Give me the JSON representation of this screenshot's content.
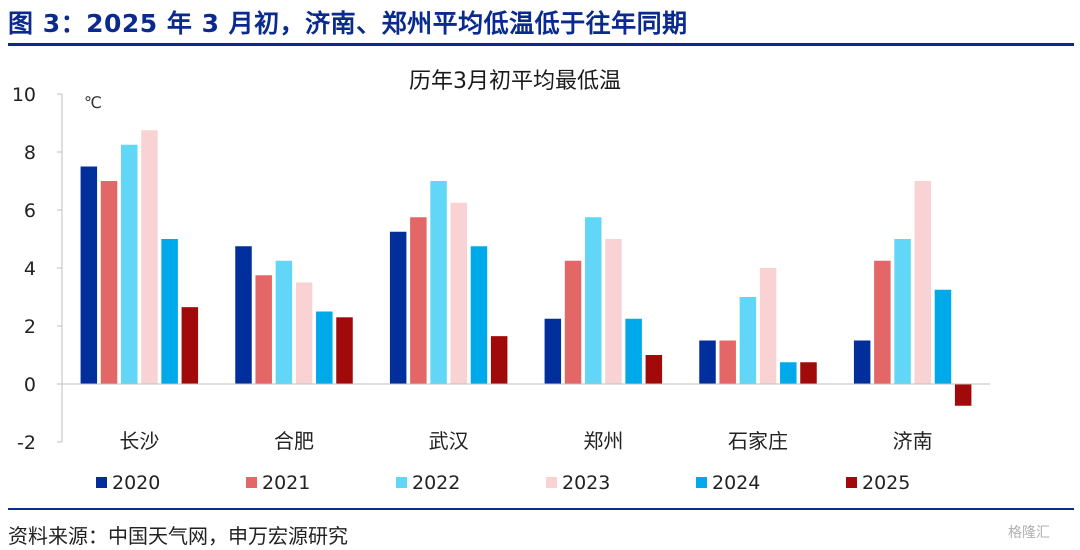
{
  "figure": {
    "title": "图 3：2025 年 3 月初，济南、郑州平均低温低于往年同期",
    "source": "资料来源：中国天气网，申万宏源研究",
    "watermark": "格隆汇"
  },
  "colors": {
    "accent": "#0a2a8e",
    "series": [
      "#002e9b",
      "#e46767",
      "#62d6f6",
      "#f9d3d3",
      "#00a9e9",
      "#a00a0a"
    ]
  },
  "chart_data": {
    "type": "bar",
    "title": "历年3月初平均最低温",
    "unit": "℃",
    "xlabel": "",
    "ylabel": "",
    "ylim": [
      -2,
      10
    ],
    "yticks": [
      -2,
      0,
      2,
      4,
      6,
      8,
      10
    ],
    "grid": false,
    "legend": "bottom",
    "categories": [
      "长沙",
      "合肥",
      "武汉",
      "郑州",
      "石家庄",
      "济南"
    ],
    "series": [
      {
        "name": "2020",
        "values": [
          7.5,
          4.75,
          5.25,
          2.25,
          1.5,
          1.5
        ]
      },
      {
        "name": "2021",
        "values": [
          7.0,
          3.75,
          5.75,
          4.25,
          1.5,
          4.25
        ]
      },
      {
        "name": "2022",
        "values": [
          8.25,
          4.25,
          7.0,
          5.75,
          3.0,
          5.0
        ]
      },
      {
        "name": "2023",
        "values": [
          8.75,
          3.5,
          6.25,
          5.0,
          4.0,
          7.0
        ]
      },
      {
        "name": "2024",
        "values": [
          5.0,
          2.5,
          4.75,
          2.25,
          0.75,
          3.25
        ]
      },
      {
        "name": "2025",
        "values": [
          2.65,
          2.3,
          1.65,
          1.0,
          0.75,
          -0.75
        ]
      }
    ]
  }
}
